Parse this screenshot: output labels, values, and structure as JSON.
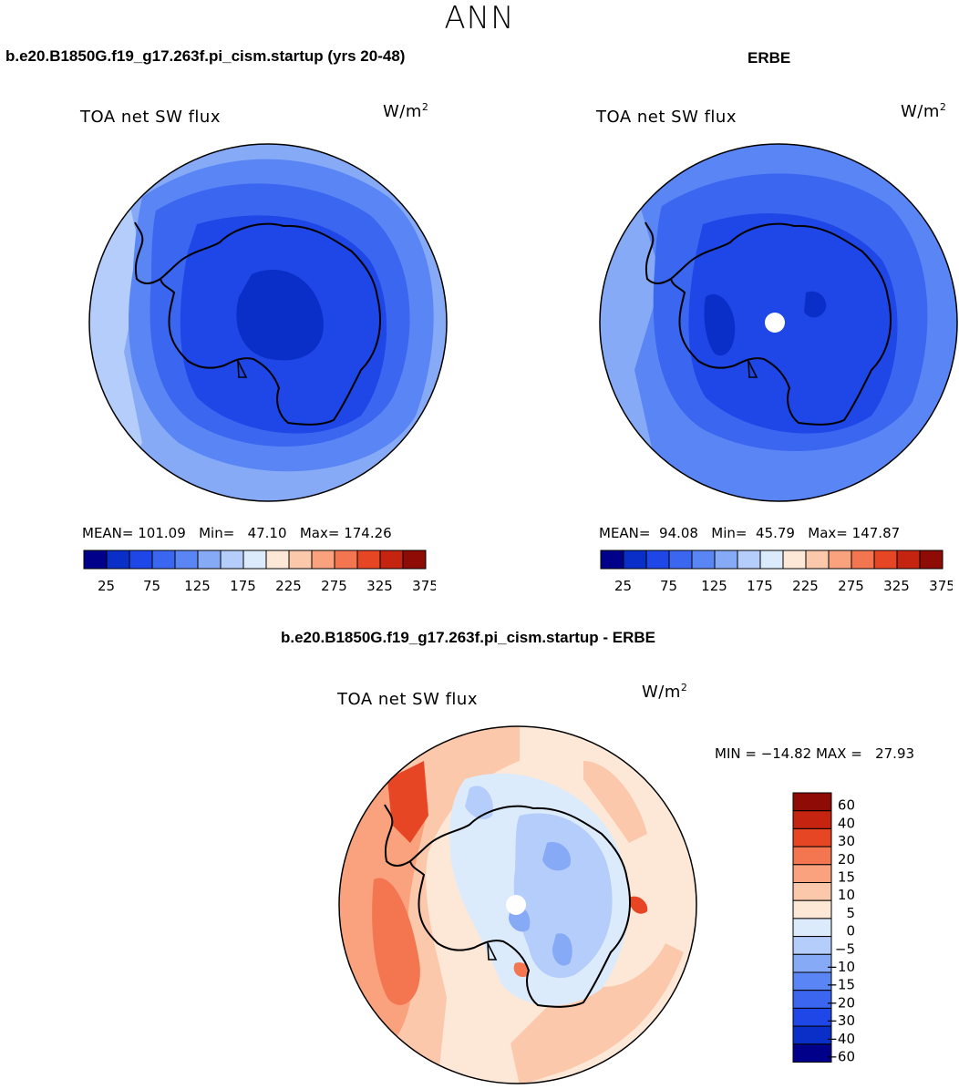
{
  "figure": {
    "main_title": "ANN",
    "model_title": "b.e20.B1850G.f19_g17.263f.pi_cism.startup (yrs 20-48)",
    "obs_title": "ERBE",
    "diff_title": "b.e20.B1850G.f19_g17.263f.pi_cism.startup - ERBE"
  },
  "chart_data": [
    {
      "type": "heatmap",
      "projection": "south-polar-stereographic",
      "variable": "TOA net SW flux",
      "units": "W/m",
      "units_superscript": "2",
      "stats": {
        "mean_label": "MEAN=",
        "mean": "101.09",
        "min_label": "Min=",
        "min": "47.10",
        "max_label": "Max=",
        "max": "174.26"
      },
      "colorbar": {
        "orientation": "horizontal",
        "levels": [
          25,
          50,
          75,
          100,
          125,
          150,
          175,
          200,
          225,
          250,
          275,
          300,
          325,
          350,
          375
        ],
        "tick_labels": [
          "25",
          "75",
          "125",
          "175",
          "225",
          "275",
          "325",
          "375"
        ],
        "colors": [
          "#00008a",
          "#0a2fc8",
          "#1f46e6",
          "#3b66f0",
          "#5a86f5",
          "#86aaf6",
          "#b5cdfa",
          "#dcebfc",
          "#fde8d8",
          "#fcc8ab",
          "#f9a27d",
          "#f47650",
          "#e74624",
          "#c42410",
          "#8e0c05"
        ]
      }
    },
    {
      "type": "heatmap",
      "projection": "south-polar-stereographic",
      "variable": "TOA net SW flux",
      "units": "W/m",
      "units_superscript": "2",
      "stats": {
        "mean_label": "MEAN=",
        "mean": "94.08",
        "min_label": "Min=",
        "min": "45.79",
        "max_label": "Max=",
        "max": "147.87"
      },
      "colorbar": {
        "orientation": "horizontal",
        "levels": [
          25,
          50,
          75,
          100,
          125,
          150,
          175,
          200,
          225,
          250,
          275,
          300,
          325,
          350,
          375
        ],
        "tick_labels": [
          "25",
          "75",
          "125",
          "175",
          "225",
          "275",
          "325",
          "375"
        ],
        "colors": [
          "#00008a",
          "#0a2fc8",
          "#1f46e6",
          "#3b66f0",
          "#5a86f5",
          "#86aaf6",
          "#b5cdfa",
          "#dcebfc",
          "#fde8d8",
          "#fcc8ab",
          "#f9a27d",
          "#f47650",
          "#e74624",
          "#c42410",
          "#8e0c05"
        ]
      }
    },
    {
      "type": "heatmap",
      "projection": "south-polar-stereographic",
      "variable": "TOA net SW flux",
      "units": "W/m",
      "units_superscript": "2",
      "stats_text": "MIN = −14.82 MAX =   27.93",
      "colorbar": {
        "orientation": "vertical",
        "tick_labels": [
          "60",
          "40",
          "30",
          "20",
          "15",
          "10",
          "5",
          "0",
          "−5",
          "−10",
          "−15",
          "−20",
          "−30",
          "−40",
          "−60"
        ],
        "colors": [
          "#8e0c05",
          "#c42410",
          "#e74624",
          "#f47650",
          "#f9a27d",
          "#fcc8ab",
          "#fde8d8",
          "#dcebfc",
          "#b5cdfa",
          "#86aaf6",
          "#5a86f5",
          "#3b66f0",
          "#1f46e6",
          "#0a2fc8",
          "#00008a"
        ]
      }
    }
  ]
}
